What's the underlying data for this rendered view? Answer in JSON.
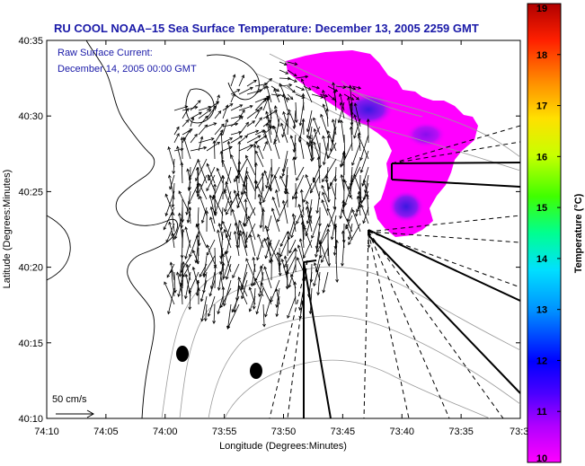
{
  "chart_data": {
    "type": "map",
    "title": "RU COOL  NOAA–15  Sea Surface Temperature:  December 13, 2005 2259 GMT",
    "legend": {
      "line1": "Raw Surface Current:",
      "line2": "December 14, 2005 00:00 GMT"
    },
    "scale": {
      "label": "50 cm/s"
    },
    "xlabel": "Longitude (Degrees:Minutes)",
    "ylabel": "Latitude (Degrees:Minutes)",
    "x_ticks": [
      "74:10",
      "74:05",
      "74:00",
      "73:55",
      "73:50",
      "73:45",
      "73:40",
      "73:35",
      "73:3"
    ],
    "y_ticks": [
      "40:35",
      "40:30",
      "40:25",
      "40:20",
      "40:15",
      "40:10"
    ],
    "xlim_minutes_west": [
      10,
      30
    ],
    "ylim_minutes_north": [
      10,
      35
    ],
    "colorbar": {
      "label": "Temperature (°C)",
      "ticks": [
        "19",
        "18",
        "17",
        "16",
        "15",
        "14",
        "13",
        "12",
        "11",
        "10"
      ],
      "range": [
        10,
        19
      ]
    }
  }
}
